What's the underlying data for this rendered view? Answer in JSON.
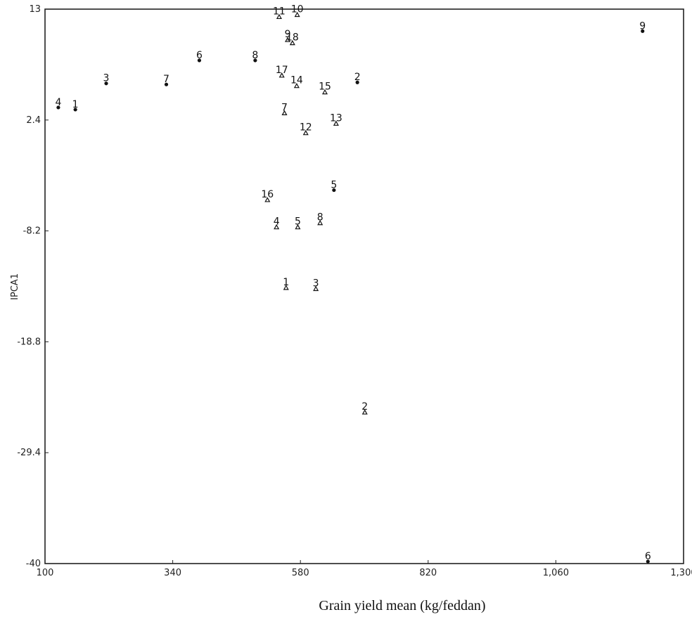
{
  "chart_data": {
    "type": "scatter",
    "title": "",
    "xlabel": "Grain yield mean (kg/feddan)",
    "ylabel": "IPCA1",
    "xlim": [
      100,
      1300
    ],
    "ylim": [
      -40,
      13
    ],
    "x_ticks": [
      {
        "value": 100,
        "label": "100"
      },
      {
        "value": 340,
        "label": "340"
      },
      {
        "value": 580,
        "label": "580"
      },
      {
        "value": 820,
        "label": "820"
      },
      {
        "value": 1060,
        "label": "1,060"
      },
      {
        "value": 1300,
        "label": "1,300"
      }
    ],
    "y_ticks": [
      {
        "value": 13,
        "label": "13"
      },
      {
        "value": 2.4,
        "label": "2.4"
      },
      {
        "value": -8.2,
        "label": "-8.2"
      },
      {
        "value": -18.8,
        "label": "-18.8"
      },
      {
        "value": -29.4,
        "label": "-29.4"
      },
      {
        "value": -40,
        "label": "-40"
      }
    ],
    "grid": false,
    "series": [
      {
        "marker": "circle",
        "points": [
          {
            "label": "4",
            "x": 125,
            "y": 3.8
          },
          {
            "label": "1",
            "x": 157,
            "y": 3.6
          },
          {
            "label": "3",
            "x": 215,
            "y": 6.1
          },
          {
            "label": "7",
            "x": 328,
            "y": 6.0
          },
          {
            "label": "6",
            "x": 390,
            "y": 8.3
          },
          {
            "label": "8",
            "x": 495,
            "y": 8.3
          },
          {
            "label": "2",
            "x": 687,
            "y": 6.2
          },
          {
            "label": "5",
            "x": 643,
            "y": -4.1
          },
          {
            "label": "9",
            "x": 1223,
            "y": 11.1
          },
          {
            "label": "6",
            "x": 1233,
            "y": -39.6
          }
        ]
      },
      {
        "marker": "triangle",
        "points": [
          {
            "label": "11",
            "x": 540,
            "y": 12.5
          },
          {
            "label": "10",
            "x": 574,
            "y": 12.7
          },
          {
            "label": "9",
            "x": 556,
            "y": 10.3
          },
          {
            "label": "18",
            "x": 565,
            "y": 10.0
          },
          {
            "label": "17",
            "x": 545,
            "y": 6.9
          },
          {
            "label": "14",
            "x": 573,
            "y": 5.9
          },
          {
            "label": "15",
            "x": 626,
            "y": 5.3
          },
          {
            "label": "7",
            "x": 550,
            "y": 3.3
          },
          {
            "label": "13",
            "x": 647,
            "y": 2.3
          },
          {
            "label": "12",
            "x": 590,
            "y": 1.4
          },
          {
            "label": "16",
            "x": 518,
            "y": -5.0
          },
          {
            "label": "4",
            "x": 535,
            "y": -7.6
          },
          {
            "label": "5",
            "x": 575,
            "y": -7.6
          },
          {
            "label": "8",
            "x": 617,
            "y": -7.2
          },
          {
            "label": "1",
            "x": 553,
            "y": -13.4
          },
          {
            "label": "3",
            "x": 609,
            "y": -13.5
          },
          {
            "label": "2",
            "x": 701,
            "y": -25.3
          }
        ]
      }
    ]
  }
}
